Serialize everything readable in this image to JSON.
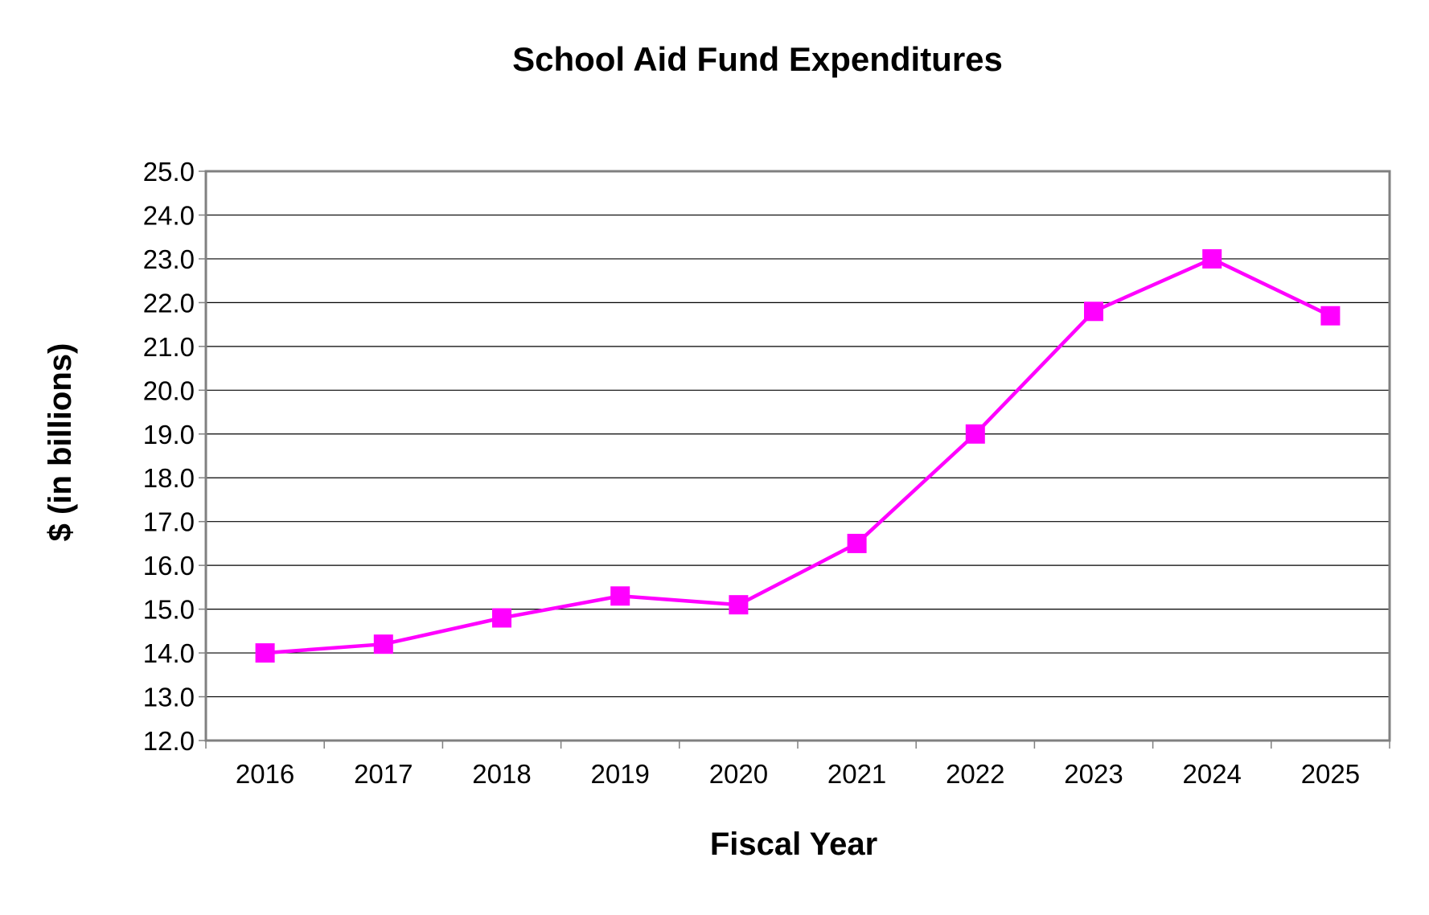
{
  "chart_data": {
    "type": "line",
    "title": "School Aid Fund Expenditures",
    "xlabel": "Fiscal Year",
    "ylabel": "$ (in billions)",
    "categories": [
      "2016",
      "2017",
      "2018",
      "2019",
      "2020",
      "2021",
      "2022",
      "2023",
      "2024",
      "2025"
    ],
    "series": [
      {
        "values": [
          14.0,
          14.2,
          14.8,
          15.3,
          15.1,
          16.5,
          19.0,
          21.8,
          23.0,
          21.7
        ],
        "color": "#ff00ff",
        "marker": "square"
      }
    ],
    "ylim": [
      12.0,
      25.0
    ],
    "yticks": [
      "12.0",
      "13.0",
      "14.0",
      "15.0",
      "16.0",
      "17.0",
      "18.0",
      "19.0",
      "20.0",
      "21.0",
      "22.0",
      "23.0",
      "24.0",
      "25.0"
    ],
    "grid": true,
    "legend": "none"
  }
}
